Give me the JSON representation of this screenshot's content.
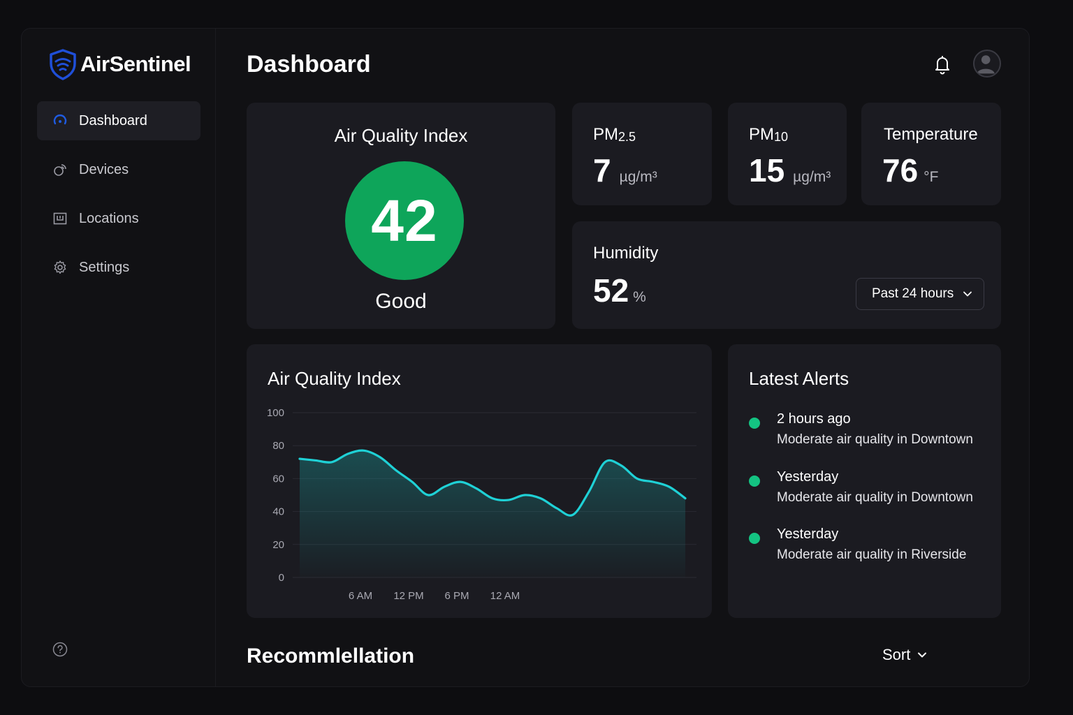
{
  "brand": {
    "name": "AirSentinel",
    "accent": "#1f4fd8"
  },
  "sidebar": {
    "items": [
      {
        "label": "Dashboard",
        "icon": "gauge-icon",
        "active": true
      },
      {
        "label": "Devices",
        "icon": "signal-icon",
        "active": false
      },
      {
        "label": "Locations",
        "icon": "map-icon",
        "active": false
      },
      {
        "label": "Settings",
        "icon": "gear-icon",
        "active": false
      }
    ],
    "help_icon": "help-icon"
  },
  "header": {
    "title": "Dashboard",
    "bell_icon": "bell-icon",
    "avatar_icon": "user-icon"
  },
  "aqi": {
    "title": "Air Quality Index",
    "value": "42",
    "status": "Good",
    "color": "#0ea55a"
  },
  "metrics": {
    "pm25": {
      "label_main": "PM",
      "label_sub": "2.5",
      "value": "7",
      "unit": "µg/m³"
    },
    "pm10": {
      "label_main": "PM",
      "label_sub": "10",
      "value": "15",
      "unit": "µg/m³"
    },
    "temperature": {
      "label": "Temperature",
      "value": "76",
      "unit": "°F"
    },
    "humidity": {
      "label": "Humidity",
      "value": "52",
      "unit": "%",
      "range_selected": "Past 24 hours"
    }
  },
  "chart_data": {
    "type": "line",
    "title": "Air Quality Index",
    "ylim": [
      0,
      100
    ],
    "y_ticks": [
      0,
      20,
      40,
      60,
      80,
      100
    ],
    "x_tick_labels": [
      "6 AM",
      "12 PM",
      "6 PM",
      "12 AM"
    ],
    "x_tick_positions": [
      3,
      6,
      9,
      12
    ],
    "x": [
      0,
      1,
      2,
      3,
      4,
      5,
      6,
      7,
      8,
      9,
      10,
      11,
      12,
      13,
      14,
      15,
      16,
      17,
      18,
      19,
      20,
      21,
      22,
      23,
      24
    ],
    "values": [
      72,
      71,
      70,
      75,
      77,
      73,
      65,
      58,
      50,
      55,
      58,
      54,
      48,
      47,
      50,
      48,
      42,
      38,
      52,
      70,
      68,
      60,
      58,
      55,
      48
    ],
    "line_color": "#1fd1d6"
  },
  "alerts": {
    "title": "Latest Alerts",
    "items": [
      {
        "time": "2 hours ago",
        "message": "Moderate air quality in Downtown"
      },
      {
        "time": "Yesterday",
        "message": "Moderate air quality in Downtown"
      },
      {
        "time": "Yesterday",
        "message": "Moderate air quality in Riverside"
      }
    ],
    "dot_color": "#14c382"
  },
  "recommendation": {
    "title": "Recommlellation",
    "sort_label": "Sort"
  }
}
